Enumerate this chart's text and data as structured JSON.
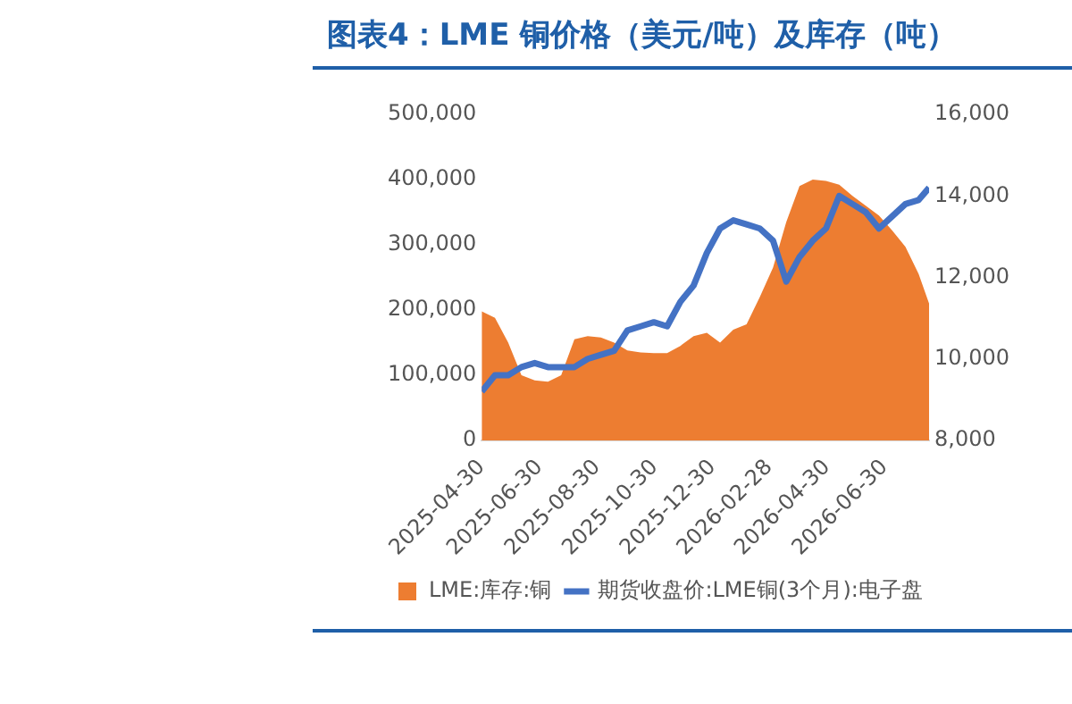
{
  "chart_data": {
    "type": "area",
    "title": "图表4：LME 铜价格（美元/吨）及库存（吨）",
    "x": [
      "2025-04-30",
      "2025-05-14",
      "2025-05-28",
      "2025-06-11",
      "2025-06-25",
      "2025-07-09",
      "2025-07-23",
      "2025-08-06",
      "2025-08-20",
      "2025-09-03",
      "2025-09-17",
      "2025-10-01",
      "2025-10-15",
      "2025-10-29",
      "2025-11-12",
      "2025-11-26",
      "2025-12-10",
      "2025-12-24",
      "2026-01-07",
      "2026-01-21",
      "2026-02-04",
      "2026-02-18",
      "2026-03-04",
      "2026-03-18",
      "2026-04-01",
      "2026-04-15",
      "2026-04-29",
      "2026-05-13",
      "2026-05-27",
      "2026-06-10",
      "2026-06-24",
      "2026-07-08",
      "2026-07-22",
      "2026-08-05",
      "2026-08-16"
    ],
    "series": [
      {
        "name": "LME:库存:铜",
        "type": "area",
        "color": "#ed7d31",
        "values": [
          198000,
          188000,
          150000,
          100000,
          92000,
          90000,
          100000,
          155000,
          160000,
          158000,
          150000,
          138000,
          135000,
          134000,
          134000,
          145000,
          160000,
          165000,
          150000,
          170000,
          178000,
          220000,
          265000,
          335000,
          390000,
          400000,
          398000,
          392000,
          375000,
          360000,
          345000,
          322000,
          297000,
          255000,
          210000
        ]
      },
      {
        "name": "期货收盘价:LME铜(3个月):电子盘",
        "type": "line",
        "axis": "y2",
        "color": "#4472c4",
        "values": [
          9200,
          9600,
          9600,
          9800,
          9900,
          9800,
          9800,
          9800,
          10000,
          10100,
          10200,
          10700,
          10800,
          10900,
          10800,
          11400,
          11800,
          12600,
          13200,
          13400,
          13300,
          13200,
          12900,
          11900,
          12500,
          12900,
          13200,
          14000,
          13800,
          13600,
          13200,
          13500,
          13800,
          13900,
          14200
        ]
      }
    ],
    "xlim": [
      "2025-04-30",
      "2026-08-16"
    ],
    "xticks": [
      "2025-04-30",
      "2025-06-30",
      "2025-08-30",
      "2025-10-30",
      "2025-12-30",
      "2026-02-28",
      "2026-04-30",
      "2026-06-30"
    ],
    "ylim": [
      0,
      500000
    ],
    "yticks": [
      0,
      {
        "value": 100000,
        "label": "100,000"
      },
      {
        "value": 200000,
        "label": "200,000"
      },
      {
        "value": 300000,
        "label": "300,000"
      },
      {
        "value": 400000,
        "label": "400,000"
      },
      {
        "value": 500000,
        "label": "500,000"
      }
    ],
    "y2lim": [
      8000,
      16000
    ],
    "y2ticks": [
      {
        "value": 8000,
        "label": "8,000"
      },
      {
        "value": 10000,
        "label": "10,000"
      },
      {
        "value": 12000,
        "label": "12,000"
      },
      {
        "value": 14000,
        "label": "14,000"
      },
      {
        "value": 16000,
        "label": "16,000"
      }
    ],
    "grid": false,
    "legend": "bottom"
  }
}
